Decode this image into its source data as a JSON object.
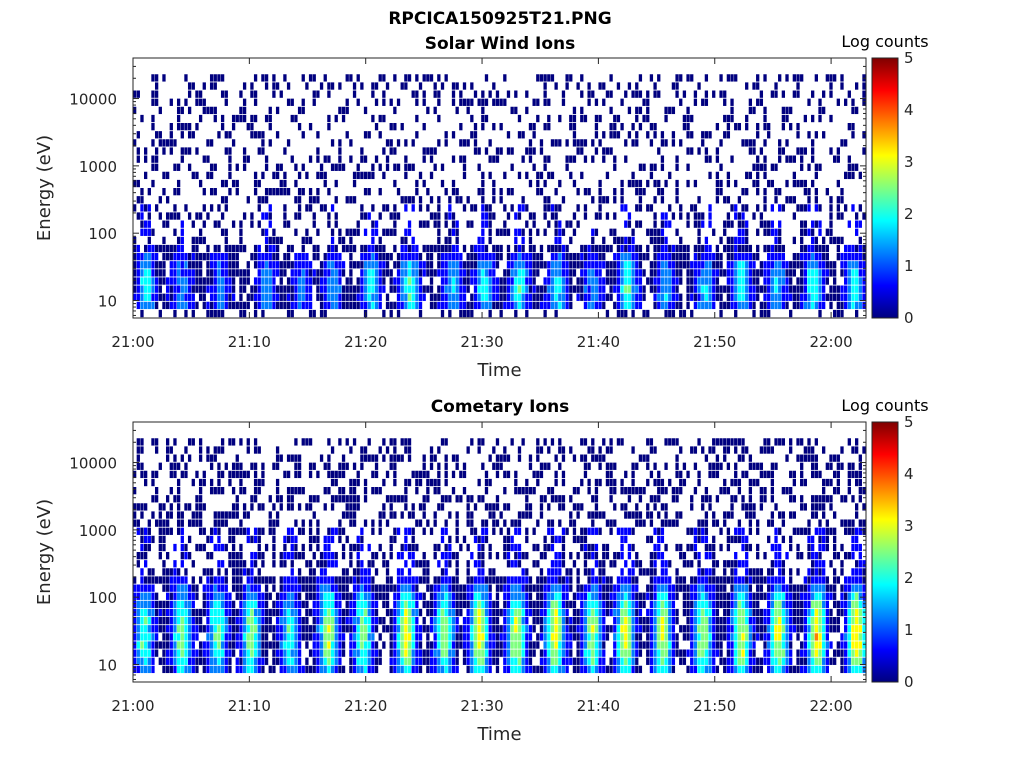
{
  "figure": {
    "title": "RPCICA150925T21.PNG"
  },
  "colorscale": [
    "#00007f",
    "#0000ff",
    "#007fff",
    "#00ffff",
    "#7fff7f",
    "#ffff00",
    "#ff7f00",
    "#ff0000",
    "#7f0000"
  ],
  "chart_data": [
    {
      "type": "heatmap",
      "title": "Solar Wind Ions",
      "xlabel": "Time",
      "ylabel": "Energy (eV)",
      "x_range": [
        "21:00",
        "22:03"
      ],
      "x_ticks": [
        "21:00",
        "21:10",
        "21:20",
        "21:30",
        "21:40",
        "21:50",
        "22:00"
      ],
      "y_scale": "log",
      "y_range": [
        5.5,
        40000
      ],
      "y_ticks": [
        "10",
        "100",
        "1000",
        "10000"
      ],
      "colorbar": {
        "label": "Log counts",
        "range": [
          0,
          5
        ],
        "ticks": [
          "0",
          "1",
          "2",
          "3",
          "4",
          "5"
        ]
      },
      "grid": false,
      "pulse_times_min": [
        1.2,
        4.2,
        7.5,
        11.5,
        14.5,
        17.2,
        20.5,
        23.8,
        27.5,
        30.2,
        33.2,
        36.5,
        39.5,
        42.5,
        45.8,
        49.2,
        52.3,
        55.3,
        58.5,
        62.0
      ],
      "pulse_peak_log_counts": [
        1.8,
        1.3,
        1.2,
        1.5,
        1.2,
        1.4,
        1.9,
        2.2,
        1.6,
        1.9,
        2.1,
        1.9,
        1.3,
        2.2,
        1.6,
        1.6,
        2.0,
        1.6,
        2.1,
        2.0
      ],
      "band_energy_ev": [
        8,
        60
      ],
      "background_log_counts": 0.3,
      "background_energy_ev": [
        6,
        20000
      ]
    },
    {
      "type": "heatmap",
      "title": "Cometary Ions",
      "xlabel": "Time",
      "ylabel": "Energy (eV)",
      "x_range": [
        "21:00",
        "22:03"
      ],
      "x_ticks": [
        "21:00",
        "21:10",
        "21:20",
        "21:30",
        "21:40",
        "21:50",
        "22:00"
      ],
      "y_scale": "log",
      "y_range": [
        5.5,
        40000
      ],
      "y_ticks": [
        "10",
        "100",
        "1000",
        "10000"
      ],
      "colorbar": {
        "label": "Log counts",
        "range": [
          0,
          5
        ],
        "ticks": [
          "0",
          "1",
          "2",
          "3",
          "4",
          "5"
        ]
      },
      "grid": false,
      "pulse_times_min": [
        1.0,
        4.2,
        7.3,
        10.2,
        13.5,
        16.8,
        19.8,
        23.5,
        26.8,
        29.8,
        33.0,
        36.3,
        39.5,
        42.3,
        45.5,
        49.0,
        52.3,
        55.5,
        58.8,
        62.2
      ],
      "pulse_peak_log_counts": [
        2.2,
        2.6,
        2.4,
        2.5,
        2.1,
        2.9,
        2.5,
        3.2,
        2.6,
        3.1,
        2.9,
        3.1,
        2.7,
        3.0,
        2.9,
        2.8,
        3.0,
        3.0,
        3.3,
        3.4
      ],
      "band_energy_ev": [
        8,
        200
      ],
      "background_log_counts": 0.4,
      "background_energy_ev": [
        30,
        20000
      ]
    }
  ]
}
